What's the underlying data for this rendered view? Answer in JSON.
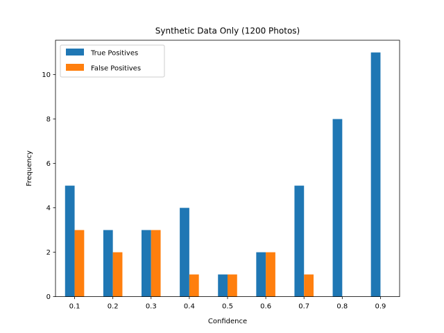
{
  "chart_data": {
    "type": "bar",
    "title": "Synthetic Data Only (1200 Photos)",
    "xlabel": "Confidence",
    "ylabel": "Frequency",
    "categories": [
      "0.1",
      "0.2",
      "0.3",
      "0.4",
      "0.5",
      "0.6",
      "0.7",
      "0.8",
      "0.9"
    ],
    "series": [
      {
        "name": "True Positives",
        "color": "#1f77b4",
        "values": [
          5,
          3,
          3,
          4,
          1,
          2,
          5,
          8,
          11
        ]
      },
      {
        "name": "False Positives",
        "color": "#ff7f0e",
        "values": [
          3,
          2,
          3,
          1,
          1,
          2,
          1,
          0,
          0
        ]
      }
    ],
    "ylim": [
      0,
      11.55
    ],
    "yticks": [
      "0",
      "2",
      "4",
      "6",
      "8",
      "10"
    ],
    "grid": false,
    "legend_position": "top-left"
  }
}
